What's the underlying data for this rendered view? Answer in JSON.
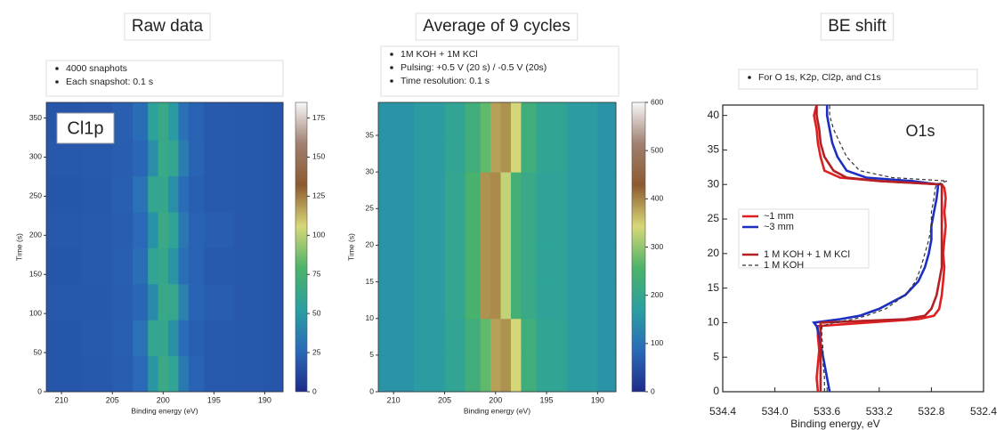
{
  "chart_data": [
    {
      "type": "heatmap",
      "title": "Raw data",
      "notes": [
        "4000 snaphots",
        "Each snapshot: 0.1 s"
      ],
      "label": "Cl1p",
      "xlabel": "Binding energy (eV)",
      "ylabel": "Time (s)",
      "xbins": [
        211.5,
        208,
        205,
        203,
        201.5,
        200.5,
        199.5,
        198.5,
        197.5,
        196,
        193,
        190,
        188.2
      ],
      "ybins": [
        0,
        46,
        92,
        138,
        184,
        230,
        276,
        322,
        370
      ],
      "z": [
        [
          18,
          19,
          21,
          26,
          48,
          66,
          58,
          34,
          24,
          20,
          19,
          18
        ],
        [
          18,
          20,
          22,
          30,
          60,
          62,
          45,
          28,
          22,
          20,
          19,
          18
        ],
        [
          19,
          19,
          21,
          25,
          42,
          64,
          62,
          38,
          24,
          21,
          19,
          18
        ],
        [
          18,
          20,
          22,
          29,
          58,
          63,
          47,
          29,
          23,
          20,
          19,
          18
        ],
        [
          19,
          20,
          21,
          26,
          46,
          66,
          57,
          33,
          23,
          21,
          19,
          18
        ],
        [
          18,
          19,
          22,
          30,
          60,
          62,
          44,
          28,
          22,
          20,
          19,
          18
        ],
        [
          19,
          20,
          21,
          25,
          44,
          65,
          60,
          36,
          24,
          20,
          19,
          18
        ],
        [
          18,
          19,
          22,
          28,
          55,
          64,
          50,
          30,
          23,
          20,
          19,
          18
        ]
      ],
      "xlim": [
        211.5,
        188.2
      ],
      "xticks": [
        210,
        205,
        200,
        195,
        190
      ],
      "ylim": [
        0,
        370
      ],
      "yticks": [
        0,
        50,
        100,
        150,
        200,
        250,
        300,
        350
      ],
      "zlim": [
        0,
        185
      ],
      "zticks": [
        0,
        25,
        50,
        75,
        100,
        125,
        150,
        175
      ],
      "colormap": [
        "#1e2a8a",
        "#2a6ab8",
        "#2aa0a0",
        "#4cb36a",
        "#d8d878",
        "#8c5a30",
        "#a08070",
        "#f8f8f8"
      ]
    },
    {
      "type": "heatmap",
      "title": "Average of 9 cycles",
      "notes": [
        "1M KOH + 1M KCl",
        "Pulsing: +0.5 V (20 s) / -0.5 V (20s)",
        "Time resolution: 0.1 s"
      ],
      "xlabel": "Binding energy (eV)",
      "ylabel": "Time (s)",
      "xbins": [
        211.5,
        208,
        205,
        203,
        201.5,
        200.5,
        199.5,
        198.5,
        197.5,
        196,
        193,
        190,
        188.2
      ],
      "ybins": [
        0,
        5,
        10,
        15,
        20,
        25,
        30,
        35,
        39.5
      ],
      "z": [
        [
          150,
          165,
          190,
          230,
          270,
          380,
          390,
          340,
          230,
          190,
          165,
          150
        ],
        [
          150,
          165,
          190,
          230,
          270,
          380,
          390,
          340,
          230,
          190,
          165,
          150
        ],
        [
          150,
          165,
          195,
          250,
          390,
          395,
          330,
          240,
          210,
          185,
          165,
          150
        ],
        [
          150,
          165,
          195,
          250,
          390,
          395,
          330,
          240,
          210,
          185,
          165,
          150
        ],
        [
          150,
          165,
          195,
          250,
          390,
          395,
          330,
          240,
          210,
          185,
          165,
          150
        ],
        [
          150,
          165,
          195,
          250,
          390,
          395,
          330,
          240,
          210,
          185,
          165,
          150
        ],
        [
          150,
          165,
          190,
          230,
          270,
          380,
          390,
          340,
          230,
          190,
          165,
          150
        ],
        [
          150,
          165,
          190,
          230,
          270,
          380,
          390,
          340,
          230,
          190,
          165,
          150
        ]
      ],
      "xlim": [
        211.5,
        188.2
      ],
      "xticks": [
        210,
        205,
        200,
        195,
        190
      ],
      "ylim": [
        0,
        39.5
      ],
      "yticks": [
        0,
        5,
        10,
        15,
        20,
        25,
        30,
        35
      ],
      "zlim": [
        0,
        600
      ],
      "zticks": [
        0,
        100,
        200,
        300,
        400,
        500,
        600
      ],
      "colormap": [
        "#1e2a8a",
        "#2a6ab8",
        "#2aa0a0",
        "#4cb36a",
        "#d8d878",
        "#8c5a30",
        "#a08070",
        "#f8f8f8"
      ]
    },
    {
      "type": "line",
      "title": "BE shift",
      "notes": [
        "For O 1s, K2p, Cl2p, and C1s"
      ],
      "label": "O1s",
      "xlabel": "Binding energy, eV",
      "y": [
        0,
        2,
        4,
        6,
        8,
        9.5,
        10,
        10.5,
        11,
        12,
        14,
        16,
        18,
        20,
        22,
        24,
        26,
        28,
        29.5,
        30,
        30.5,
        31,
        32,
        34,
        36,
        38,
        40,
        41.5
      ],
      "series": [
        {
          "name": "~1 mm",
          "color": "#e02020",
          "dash": false,
          "values": [
            533.67,
            533.68,
            533.67,
            533.66,
            533.67,
            533.67,
            533.3,
            532.9,
            532.78,
            532.74,
            532.72,
            532.71,
            532.7,
            532.71,
            532.7,
            532.69,
            532.7,
            532.69,
            532.7,
            532.72,
            533.2,
            533.5,
            533.62,
            533.65,
            533.67,
            533.68,
            533.7,
            533.68
          ]
        },
        {
          "name": "~3 mm",
          "color": "#1c2fc0",
          "dash": false,
          "values": [
            533.58,
            533.6,
            533.62,
            533.64,
            533.66,
            533.68,
            533.7,
            533.5,
            533.35,
            533.2,
            533,
            532.9,
            532.85,
            532.82,
            532.8,
            532.8,
            532.78,
            532.76,
            532.75,
            532.75,
            532.95,
            533.3,
            533.45,
            533.52,
            533.56,
            533.58,
            533.6,
            533.6
          ]
        },
        {
          "name": "1 M KOH + 1 M KCl",
          "color": "#b52025",
          "dash": false,
          "values": [
            533.65,
            533.65,
            533.65,
            533.65,
            533.65,
            533.65,
            533.65,
            533,
            532.85,
            532.8,
            532.76,
            532.74,
            532.72,
            532.72,
            532.72,
            532.72,
            532.72,
            532.72,
            532.72,
            532.72,
            533.2,
            533.45,
            533.55,
            533.62,
            533.65,
            533.66,
            533.68,
            533.68
          ]
        },
        {
          "name": "1 M KOH",
          "color": "#333333",
          "dash": true,
          "values": [
            533.62,
            533.62,
            533.63,
            533.63,
            533.64,
            533.64,
            533.55,
            533.4,
            533.3,
            533.15,
            533,
            532.92,
            532.88,
            532.85,
            532.82,
            532.8,
            532.8,
            532.78,
            532.77,
            532.76,
            532.68,
            533.1,
            533.35,
            533.45,
            533.5,
            533.55,
            533.58,
            533.58
          ]
        }
      ],
      "xlim": [
        534.4,
        532.4
      ],
      "xticks": [
        534.4,
        {
          "value": 534,
          "label": "534.0"
        },
        533.6,
        533.2,
        532.8,
        532.4
      ],
      "ylim": [
        0,
        41.5
      ],
      "yticks": [
        0,
        5,
        10,
        15,
        20,
        25,
        30,
        35,
        40
      ]
    }
  ]
}
